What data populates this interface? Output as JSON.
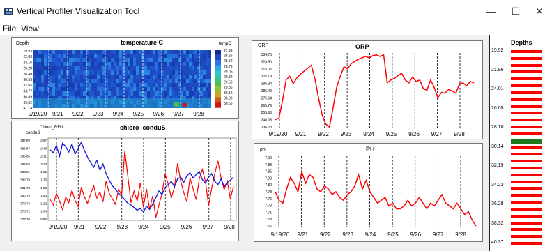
{
  "window": {
    "title": "Vertical Profiler Visualization Tool",
    "minimize_glyph": "—",
    "maximize_glyph": "☐",
    "close_glyph": "✕"
  },
  "menu": [
    {
      "label": "File"
    },
    {
      "label": "View"
    }
  ],
  "x_ticks": [
    "9/19/20",
    "9/21",
    "9/22",
    "9/23",
    "9/24",
    "9/25",
    "9/26",
    "9/27",
    "9/28"
  ],
  "temperature": {
    "title": "temperature C",
    "ylabel": "Depth",
    "colorbar_label": "tempC",
    "depth_ticks": [
      "19.93",
      "22.03",
      "24.16",
      "26.28",
      "28.40",
      "30.53",
      "32.65",
      "34.77",
      "36.89",
      "39.02",
      "41.14"
    ],
    "colorbar_ticks": [
      "27.99",
      "28.26",
      "28.52",
      "28.79",
      "29.06",
      "29.32",
      "29.59",
      "29.86",
      "30.12",
      "30.39",
      "30.66"
    ],
    "colorbar_colors": [
      "#0f2b8f",
      "#1f47c8",
      "#2a73e0",
      "#27a8e8",
      "#2ec9c7",
      "#34c290",
      "#4bbd4a",
      "#8ac231",
      "#c9a626",
      "#d65a1c",
      "#d01a12"
    ]
  },
  "orp": {
    "title": "ORP",
    "ylabel": "ORP",
    "y_ticks": [
      "334.75",
      "324.90",
      "315.05",
      "305.19",
      "295.34",
      "285.49",
      "275.64",
      "265.79",
      "255.93",
      "246.08",
      "236.23"
    ]
  },
  "ph": {
    "title": "PH",
    "ylabel": "ph",
    "y_ticks": [
      "7.90",
      "7.88",
      "7.85",
      "7.83",
      "7.80",
      "7.78",
      "7.76",
      "7.73",
      "7.71",
      "7.68",
      "7.66"
    ]
  },
  "chloro": {
    "title": "chloro_conduS",
    "ylabel_left": "Chloro_RFU",
    "ylabel_left2": "conduS",
    "conduS_ticks": [
      "387.89",
      "386.87",
      "385.85",
      "384.83",
      "383.81",
      "382.79",
      "381.78",
      "380.76",
      "379.74",
      "378.72",
      "377.70"
    ],
    "chloro_ticks": [
      "2.67",
      "2.49",
      "2.31",
      "2.13",
      "1.95",
      "1.76",
      "1.58",
      "1.40",
      "1.22",
      "1.04",
      "0.86"
    ]
  },
  "depths": {
    "title": "Depths",
    "labels": [
      "19.92",
      "21.96",
      "24.01",
      "26.05",
      "28.10",
      "30.14",
      "32.19",
      "34.23",
      "36.28",
      "38.32",
      "40.37"
    ],
    "selected_index": 13,
    "bar_color": "#ff0000",
    "selected_color": "#1f7a1f"
  },
  "colors": {
    "series_red": "#ff0000",
    "series_blue": "#1a1ad6"
  }
}
